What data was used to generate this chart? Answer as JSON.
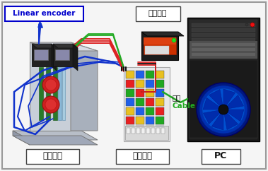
{
  "background_color": "#f5f5f5",
  "border_color": "#888888",
  "labels": {
    "linear_encoder": "Linear encoder",
    "supply": "공급전원",
    "comm_cable_line1": "통신",
    "comm_cable_line2": "Cable",
    "axis_module": "축소모델",
    "comm_module": "통신모듈",
    "pc": "PC"
  },
  "colors": {
    "le_text": "#0000cc",
    "le_box": "#0000cc",
    "supply_text": "#111111",
    "cable_green": "#22aa22",
    "red_cable": "#dd2222",
    "blue_cable": "#1133cc",
    "black_cable": "#111111",
    "label_box_edge": "#444444",
    "label_text": "#111111"
  },
  "figsize": [
    3.79,
    2.42
  ],
  "dpi": 100
}
